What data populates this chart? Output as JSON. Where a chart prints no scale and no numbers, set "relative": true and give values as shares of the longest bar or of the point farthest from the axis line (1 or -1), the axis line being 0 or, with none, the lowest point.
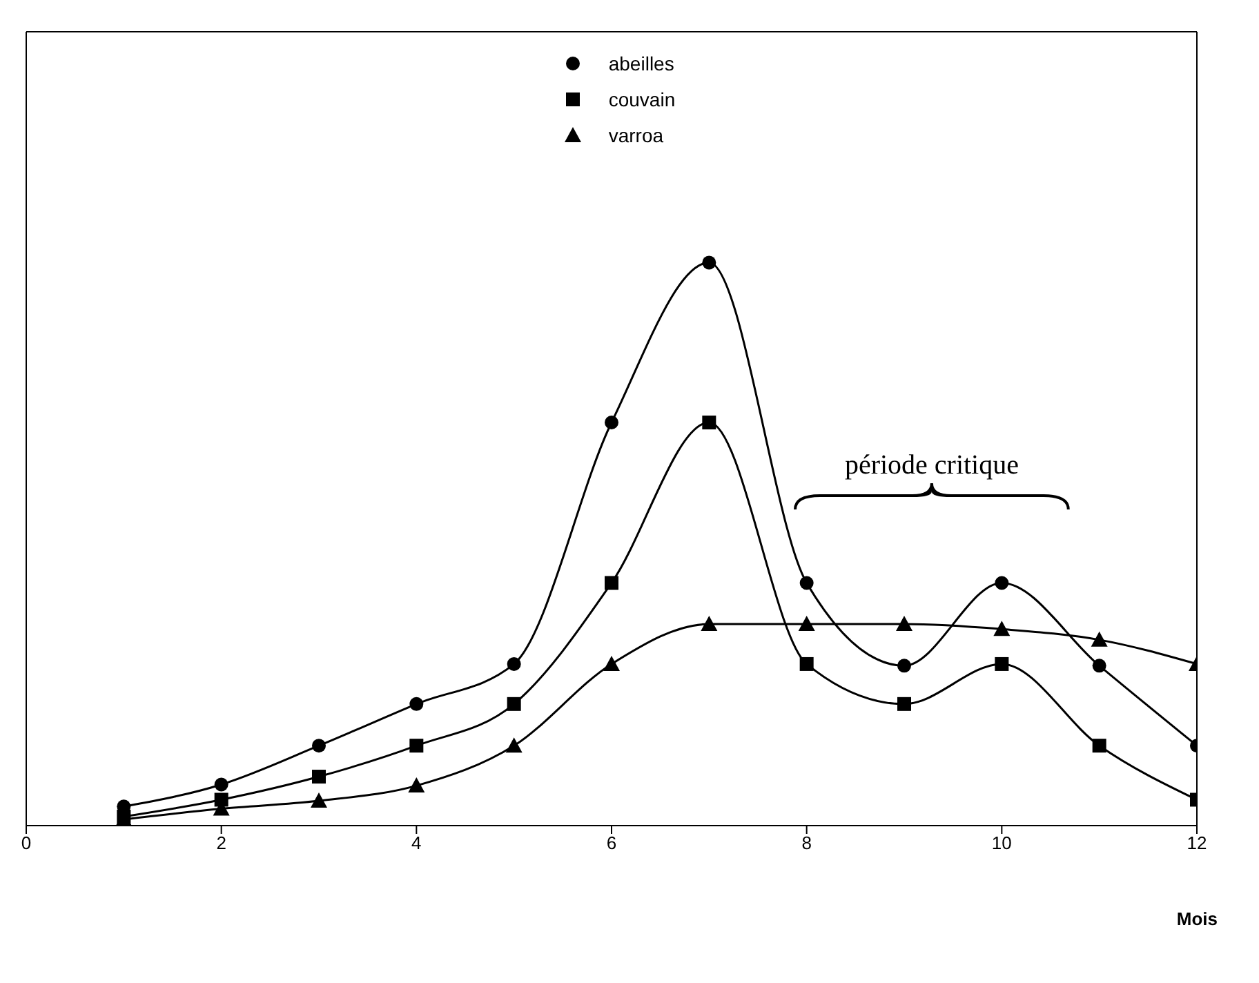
{
  "chart_data": {
    "type": "line",
    "relative": true,
    "xlabel": "Mois",
    "xlim": [
      0,
      12
    ],
    "xticks": [
      0,
      2,
      4,
      6,
      8,
      10,
      12
    ],
    "x": [
      1,
      2,
      3,
      4,
      5,
      6,
      7,
      8,
      9,
      10,
      11,
      12
    ],
    "legend": "top",
    "line_style": "solid",
    "annotations": [
      "période critique"
    ],
    "series": [
      {
        "name": "abeilles",
        "color": "#000000",
        "marker": "circle",
        "values": [
          0.034,
          0.073,
          0.142,
          0.216,
          0.287,
          0.716,
          1,
          0.431,
          0.284,
          0.431,
          0.284,
          0.142
        ]
      },
      {
        "name": "couvain",
        "color": "#000000",
        "marker": "square",
        "values": [
          0.016,
          0.046,
          0.087,
          0.142,
          0.216,
          0.431,
          0.716,
          0.287,
          0.216,
          0.287,
          0.142,
          0.046
        ]
      },
      {
        "name": "varroa",
        "color": "#000000",
        "marker": "triangle",
        "values": [
          0.011,
          0.03,
          0.044,
          0.071,
          0.142,
          0.287,
          0.358,
          0.358,
          0.358,
          0.349,
          0.33,
          0.287
        ]
      }
    ]
  }
}
